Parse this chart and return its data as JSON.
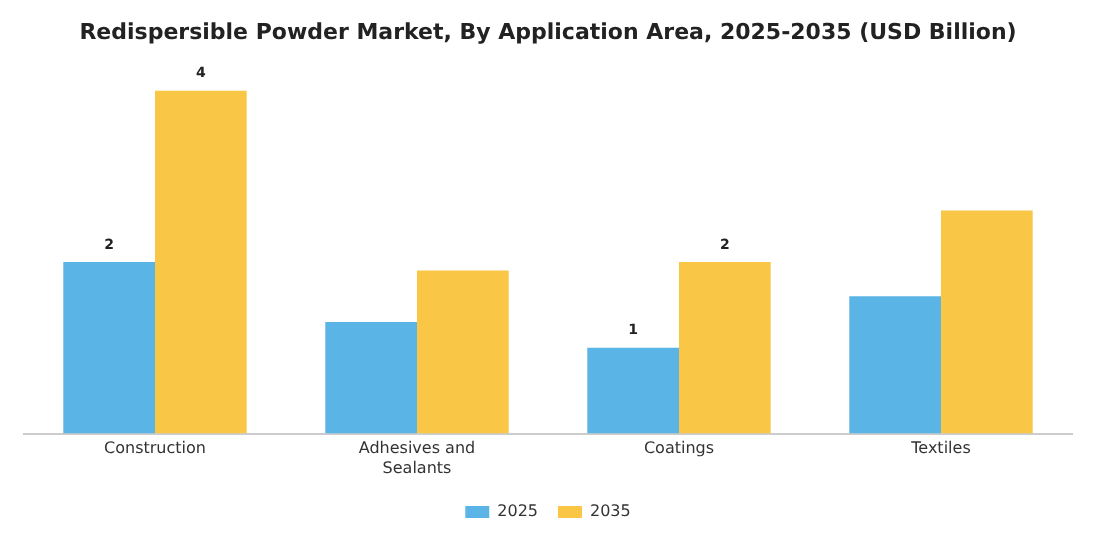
{
  "chart_data": {
    "type": "bar",
    "title": "Redispersible Powder Market, By Application Area, 2025-2035 (USD Billion)",
    "categories": [
      "Construction",
      "Adhesives and Sealants",
      "Coatings",
      "Textiles"
    ],
    "legend": "bottom",
    "tick_labels": "x",
    "grid": false,
    "series": [
      {
        "name": "2025",
        "color": "#5ab4e5",
        "values": [
          2,
          1.3,
          1,
          1.6
        ],
        "value_labels": [
          "2",
          null,
          "1",
          null
        ]
      },
      {
        "name": "2035",
        "color": "#f9c646",
        "values": [
          4,
          1.9,
          2,
          2.6
        ],
        "value_labels": [
          "4",
          null,
          "2",
          null
        ]
      }
    ]
  }
}
